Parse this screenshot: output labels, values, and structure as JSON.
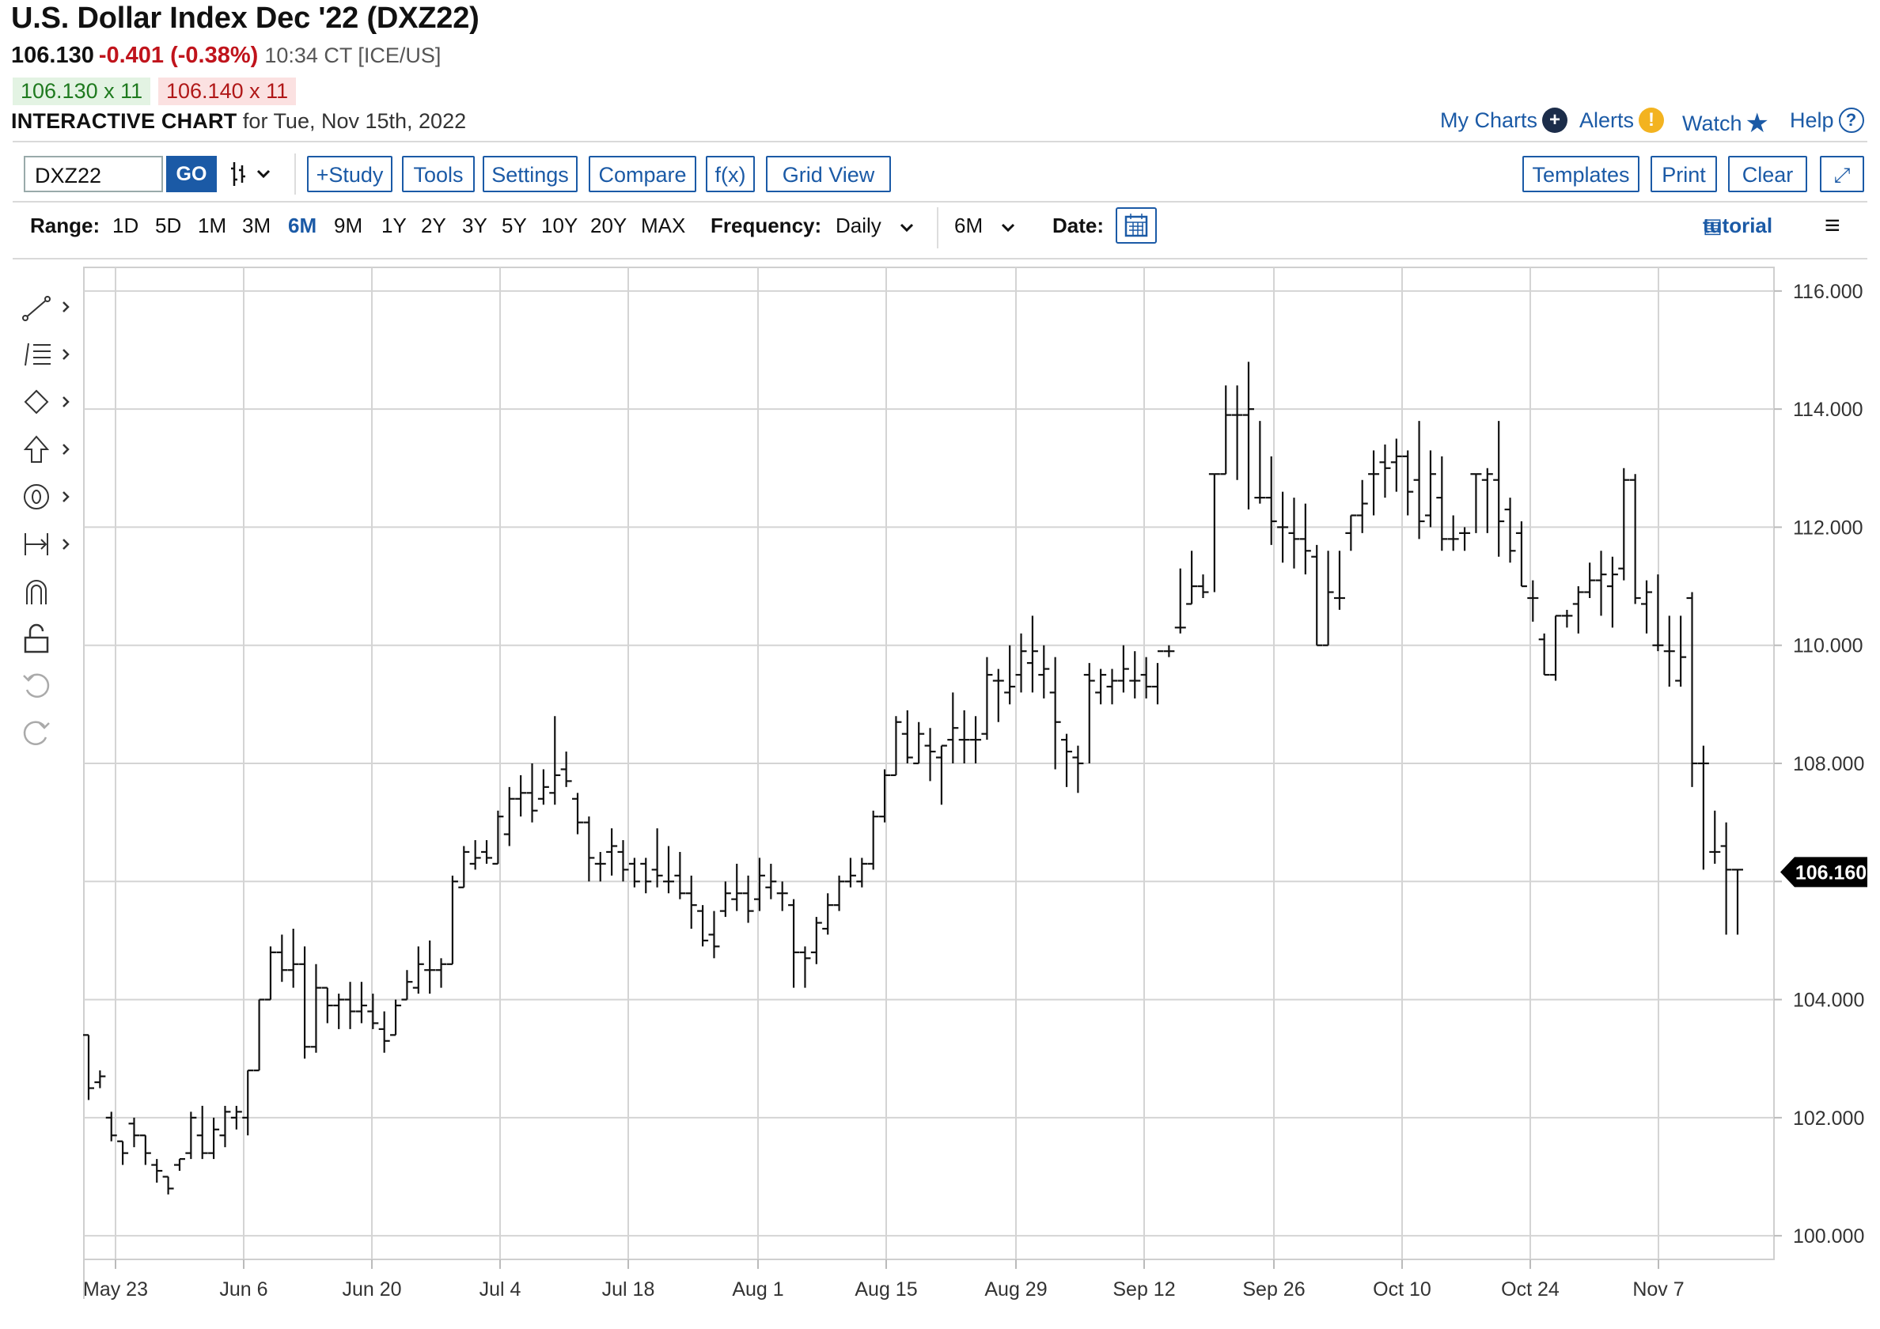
{
  "header": {
    "title": "U.S. Dollar Index Dec '22 (DXZ22)",
    "last": "106.130",
    "change": "-0.401 (-0.38%)",
    "time": "10:34 CT [ICE/US]",
    "bid": "106.130 x 11",
    "ask": "106.140 x 11",
    "interactive_label": "INTERACTIVE CHART",
    "interactive_date": "for Tue, Nov 15th, 2022"
  },
  "toplinks": {
    "mycharts": "My Charts",
    "alerts": "Alerts",
    "watch": "Watch",
    "help": "Help"
  },
  "toolbar": {
    "symbol": "DXZ22",
    "go": "GO",
    "study": "+Study",
    "tools": "Tools",
    "settings": "Settings",
    "compare": "Compare",
    "fx": "f(x)",
    "gridview": "Grid View",
    "templates": "Templates",
    "print": "Print",
    "clear": "Clear"
  },
  "range": {
    "label": "Range:",
    "options": [
      "1D",
      "5D",
      "1M",
      "3M",
      "6M",
      "9M",
      "1Y",
      "2Y",
      "3Y",
      "5Y",
      "10Y",
      "20Y",
      "MAX"
    ],
    "selected": "6M",
    "frequency_label": "Frequency:",
    "frequency": "Daily",
    "period": "6M",
    "date_label": "Date:",
    "tutorial": "tutorial"
  },
  "colors": {
    "accent": "#1b5aa6",
    "down": "#c0141c",
    "up": "#1f7a1f",
    "grid": "#d4d4d4"
  },
  "chart_data": {
    "type": "ohlc",
    "xlabel": "",
    "ylabel": "",
    "ylim": [
      99.6,
      116.4
    ],
    "yticks": [
      "116.000",
      "114.000",
      "112.000",
      "110.000",
      "108.000",
      "104.000",
      "102.000",
      "100.000"
    ],
    "xticks": [
      "May 23",
      "Jun 6",
      "Jun 20",
      "Jul 4",
      "Jul 18",
      "Aug 1",
      "Aug 15",
      "Aug 29",
      "Sep 12",
      "Sep 26",
      "Oct 10",
      "Oct 24",
      "Nov 7"
    ],
    "last_price_label": "106.160",
    "last_price": 106.16,
    "bars": [
      [
        103.4,
        103.4,
        102.3,
        102.5
      ],
      [
        102.6,
        102.8,
        102.5,
        102.7
      ],
      [
        102.0,
        102.1,
        101.6,
        101.7
      ],
      [
        101.6,
        101.6,
        101.2,
        101.4
      ],
      [
        101.9,
        102.0,
        101.5,
        101.7
      ],
      [
        101.7,
        101.7,
        101.2,
        101.4
      ],
      [
        101.2,
        101.3,
        100.9,
        101.1
      ],
      [
        101.0,
        101.0,
        100.7,
        100.8
      ],
      [
        101.2,
        101.3,
        101.1,
        101.3
      ],
      [
        101.4,
        102.1,
        101.3,
        102.0
      ],
      [
        101.7,
        102.2,
        101.3,
        101.4
      ],
      [
        101.4,
        102.0,
        101.3,
        101.8
      ],
      [
        101.7,
        102.2,
        101.5,
        102.1
      ],
      [
        102.0,
        102.2,
        101.8,
        102.1
      ],
      [
        102.0,
        102.8,
        101.7,
        102.8
      ],
      [
        102.8,
        104.0,
        102.8,
        104.0
      ],
      [
        104.0,
        104.9,
        104.0,
        104.8
      ],
      [
        104.8,
        105.1,
        104.3,
        104.5
      ],
      [
        104.5,
        105.2,
        104.2,
        104.6
      ],
      [
        104.6,
        104.9,
        103.0,
        103.2
      ],
      [
        103.2,
        104.6,
        103.1,
        104.2
      ],
      [
        104.2,
        104.2,
        103.6,
        103.9
      ],
      [
        103.9,
        104.1,
        103.5,
        104.0
      ],
      [
        104.0,
        104.3,
        103.5,
        103.8
      ],
      [
        103.8,
        104.3,
        103.6,
        103.9
      ],
      [
        103.8,
        104.1,
        103.5,
        103.6
      ],
      [
        103.5,
        103.8,
        103.1,
        103.3
      ],
      [
        103.4,
        104.0,
        103.4,
        103.9
      ],
      [
        104.0,
        104.5,
        104.0,
        104.3
      ],
      [
        104.2,
        104.9,
        104.1,
        104.6
      ],
      [
        104.5,
        105.0,
        104.1,
        104.5
      ],
      [
        104.5,
        104.7,
        104.2,
        104.6
      ],
      [
        104.6,
        106.1,
        104.6,
        106.0
      ],
      [
        105.9,
        106.6,
        105.9,
        106.5
      ],
      [
        106.3,
        106.7,
        106.2,
        106.4
      ],
      [
        106.5,
        106.7,
        106.3,
        106.4
      ],
      [
        106.3,
        107.2,
        106.3,
        107.1
      ],
      [
        106.8,
        107.6,
        106.6,
        107.4
      ],
      [
        107.4,
        107.8,
        107.1,
        107.5
      ],
      [
        107.5,
        108.0,
        107.0,
        107.2
      ],
      [
        107.4,
        107.9,
        107.3,
        107.6
      ],
      [
        107.5,
        108.8,
        107.3,
        107.8
      ],
      [
        107.9,
        108.2,
        107.6,
        107.7
      ],
      [
        107.4,
        107.5,
        106.8,
        107.0
      ],
      [
        107.0,
        107.1,
        106.0,
        106.4
      ],
      [
        106.3,
        106.5,
        106.0,
        106.3
      ],
      [
        106.5,
        106.9,
        106.1,
        106.6
      ],
      [
        106.5,
        106.7,
        106.0,
        106.2
      ],
      [
        106.3,
        106.4,
        105.9,
        106.0
      ],
      [
        106.3,
        106.4,
        105.8,
        106.0
      ],
      [
        106.2,
        106.9,
        105.9,
        106.1
      ],
      [
        106.0,
        106.6,
        105.8,
        106.0
      ],
      [
        106.1,
        106.5,
        105.7,
        105.8
      ],
      [
        105.8,
        106.1,
        105.2,
        105.6
      ],
      [
        105.5,
        105.6,
        104.9,
        105.0
      ],
      [
        105.1,
        105.5,
        104.7,
        104.9
      ],
      [
        105.5,
        106.0,
        105.4,
        105.8
      ],
      [
        105.7,
        106.3,
        105.5,
        105.8
      ],
      [
        105.8,
        106.1,
        105.3,
        105.5
      ],
      [
        105.7,
        106.4,
        105.5,
        106.1
      ],
      [
        105.9,
        106.3,
        105.7,
        106.0
      ],
      [
        105.8,
        106.0,
        105.5,
        105.8
      ],
      [
        105.6,
        105.7,
        104.2,
        104.8
      ],
      [
        104.8,
        104.9,
        104.2,
        104.7
      ],
      [
        104.8,
        105.4,
        104.6,
        105.3
      ],
      [
        105.2,
        105.8,
        105.1,
        105.6
      ],
      [
        105.6,
        106.1,
        105.5,
        106.0
      ],
      [
        106.0,
        106.4,
        105.9,
        106.1
      ],
      [
        106.0,
        106.4,
        105.9,
        106.3
      ],
      [
        106.3,
        107.2,
        106.2,
        107.1
      ],
      [
        107.1,
        107.9,
        107.0,
        107.8
      ],
      [
        107.8,
        108.8,
        107.8,
        108.7
      ],
      [
        108.5,
        108.9,
        108.0,
        108.1
      ],
      [
        108.0,
        108.7,
        108.0,
        108.5
      ],
      [
        108.3,
        108.6,
        107.7,
        108.2
      ],
      [
        108.1,
        108.3,
        107.3,
        108.3
      ],
      [
        108.4,
        109.2,
        108.0,
        108.6
      ],
      [
        108.4,
        108.9,
        108.0,
        108.4
      ],
      [
        108.4,
        108.8,
        108.0,
        108.4
      ],
      [
        108.5,
        109.8,
        108.4,
        109.5
      ],
      [
        109.4,
        109.6,
        108.7,
        109.4
      ],
      [
        109.2,
        110.0,
        109.0,
        109.3
      ],
      [
        109.5,
        110.2,
        109.2,
        109.9
      ],
      [
        109.7,
        110.5,
        109.2,
        109.9
      ],
      [
        109.5,
        110.0,
        109.1,
        109.6
      ],
      [
        109.2,
        109.8,
        107.9,
        108.7
      ],
      [
        108.4,
        108.5,
        107.6,
        108.2
      ],
      [
        108.1,
        108.3,
        107.5,
        108.0
      ],
      [
        109.5,
        109.7,
        108.0,
        109.4
      ],
      [
        109.2,
        109.6,
        109.0,
        109.5
      ],
      [
        109.3,
        109.6,
        109.0,
        109.4
      ],
      [
        109.4,
        110.0,
        109.2,
        109.6
      ],
      [
        109.4,
        109.9,
        109.1,
        109.4
      ],
      [
        109.5,
        109.8,
        109.1,
        109.3
      ],
      [
        109.3,
        109.7,
        109.0,
        109.9
      ],
      [
        109.9,
        110.0,
        109.8,
        109.9
      ],
      [
        110.3,
        111.3,
        110.2,
        110.3
      ],
      [
        110.7,
        111.6,
        110.7,
        111.0
      ],
      [
        111.0,
        111.2,
        110.8,
        110.9
      ],
      [
        112.9,
        112.9,
        110.9,
        112.9
      ],
      [
        112.9,
        114.4,
        112.9,
        113.9
      ],
      [
        113.9,
        114.4,
        112.8,
        113.9
      ],
      [
        113.9,
        114.8,
        112.3,
        114.0
      ],
      [
        112.5,
        113.8,
        112.4,
        112.5
      ],
      [
        112.5,
        113.2,
        111.7,
        112.1
      ],
      [
        112.0,
        112.6,
        111.4,
        112.0
      ],
      [
        111.9,
        112.5,
        111.3,
        111.8
      ],
      [
        111.8,
        112.4,
        111.2,
        111.6
      ],
      [
        111.5,
        111.7,
        110.0,
        110.0
      ],
      [
        110.0,
        111.6,
        110.0,
        110.9
      ],
      [
        110.8,
        111.6,
        110.6,
        110.8
      ],
      [
        111.9,
        112.2,
        111.6,
        112.2
      ],
      [
        112.2,
        112.8,
        111.9,
        112.4
      ],
      [
        112.9,
        113.3,
        112.2,
        112.9
      ],
      [
        113.1,
        113.4,
        112.5,
        113.0
      ],
      [
        113.1,
        113.5,
        112.6,
        113.2
      ],
      [
        113.2,
        113.3,
        112.2,
        112.6
      ],
      [
        112.8,
        113.8,
        111.8,
        112.1
      ],
      [
        112.2,
        113.3,
        112.0,
        112.9
      ],
      [
        112.5,
        113.2,
        111.6,
        111.8
      ],
      [
        111.8,
        112.2,
        111.6,
        111.8
      ],
      [
        111.9,
        112.0,
        111.6,
        111.9
      ],
      [
        112.9,
        112.9,
        111.9,
        112.9
      ],
      [
        112.8,
        113.0,
        111.9,
        112.9
      ],
      [
        112.8,
        113.8,
        111.5,
        112.1
      ],
      [
        112.3,
        112.5,
        111.4,
        111.6
      ],
      [
        111.9,
        112.1,
        111.0,
        111.0
      ],
      [
        110.8,
        111.1,
        110.4,
        110.8
      ],
      [
        110.1,
        110.2,
        109.5,
        109.5
      ],
      [
        109.5,
        110.5,
        109.4,
        110.5
      ],
      [
        110.5,
        110.6,
        110.3,
        110.5
      ],
      [
        110.7,
        111.0,
        110.2,
        110.9
      ],
      [
        110.9,
        111.4,
        110.8,
        111.1
      ],
      [
        111.1,
        111.6,
        110.5,
        111.2
      ],
      [
        111.0,
        111.5,
        110.3,
        111.2
      ],
      [
        111.3,
        113.0,
        111.1,
        112.8
      ],
      [
        112.8,
        112.9,
        110.7,
        110.8
      ],
      [
        110.7,
        111.1,
        110.2,
        110.9
      ],
      [
        110.0,
        111.2,
        109.9,
        110.0
      ],
      [
        109.9,
        110.5,
        109.3,
        109.9
      ],
      [
        109.4,
        110.5,
        109.3,
        109.8
      ],
      [
        110.8,
        110.9,
        107.6,
        108.0
      ],
      [
        108.0,
        108.3,
        106.2,
        108.0
      ],
      [
        106.5,
        107.2,
        106.3,
        106.5
      ],
      [
        106.6,
        107.0,
        105.1,
        106.2
      ],
      [
        106.2,
        106.2,
        105.1,
        106.2
      ]
    ]
  }
}
